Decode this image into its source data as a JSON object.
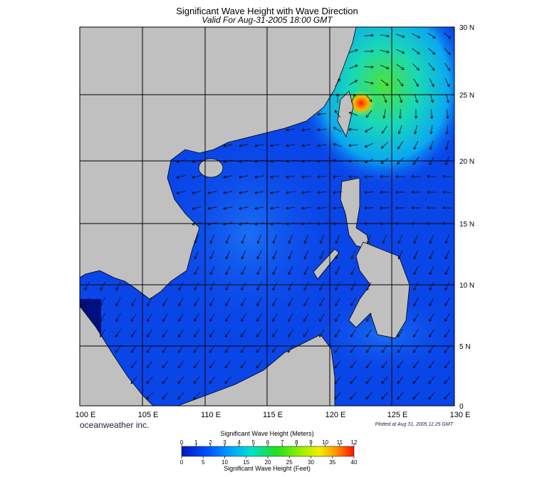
{
  "map": {
    "title": "Significant Wave Height with Wave Direction",
    "subtitle": "Valid For Aug-31-2005 18:00 GMT",
    "latitude_labels": [
      "30 N",
      "25 N",
      "20 N",
      "15 N",
      "10 N",
      "5 N",
      "0"
    ],
    "longitude_labels": [
      "100 E",
      "105 E",
      "110 E",
      "115 E",
      "120 E",
      "125 E",
      "130 E"
    ],
    "credit": "oceanweather inc.",
    "plotted": "Plotted at Aug 31, 2005 11:25 GMT",
    "colorbar": {
      "meters_title": "Significant Wave Height (Meters)",
      "meters_ticks": [
        0,
        1,
        2,
        3,
        4,
        5,
        6,
        7,
        8,
        9,
        10,
        11,
        12
      ],
      "feet_ticks": [
        0,
        5,
        10,
        15,
        20,
        25,
        30,
        35,
        40
      ],
      "feet_title": "Significant Wave Height (Feet)"
    }
  }
}
